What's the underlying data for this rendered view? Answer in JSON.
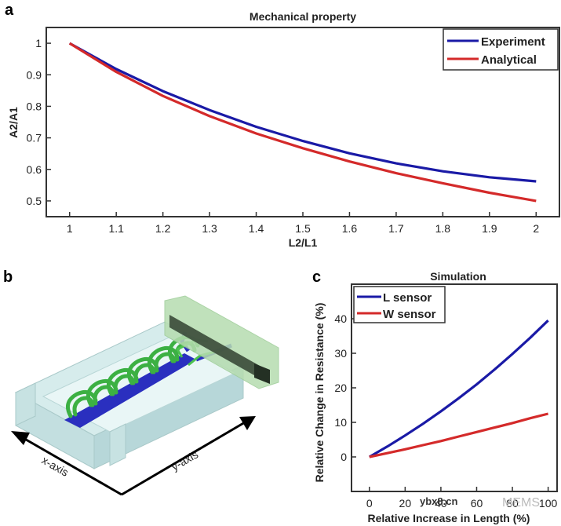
{
  "panels": {
    "a": "a",
    "b": "b",
    "c": "c"
  },
  "chart_data": [
    {
      "id": "a",
      "type": "line",
      "title": "Mechanical property",
      "xlabel": "L2/L1",
      "ylabel": "A2/A1",
      "xlim": [
        0.95,
        2.05
      ],
      "ylim": [
        0.45,
        1.05
      ],
      "xticks": [
        1,
        1.1,
        1.2,
        1.3,
        1.4,
        1.5,
        1.6,
        1.7,
        1.8,
        1.9,
        2
      ],
      "xtick_labels": [
        "1",
        "1.1",
        "1.2",
        "1.3",
        "1.4",
        "1.5",
        "1.6",
        "1.7",
        "1.8",
        "1.9",
        "2"
      ],
      "yticks": [
        0.5,
        0.6,
        0.7,
        0.8,
        0.9,
        1
      ],
      "ytick_labels": [
        "0.5",
        "0.6",
        "0.7",
        "0.8",
        "0.9",
        "1"
      ],
      "grid": false,
      "legend_position": "top-right",
      "x": [
        1,
        1.1,
        1.2,
        1.3,
        1.4,
        1.5,
        1.6,
        1.7,
        1.8,
        1.9,
        2
      ],
      "series": [
        {
          "name": "Experiment",
          "color": "#1a1aa6",
          "values": [
            1.0,
            0.918,
            0.848,
            0.788,
            0.735,
            0.69,
            0.651,
            0.619,
            0.594,
            0.575,
            0.562
          ]
        },
        {
          "name": "Analytical",
          "color": "#d42a2a",
          "values": [
            1.0,
            0.909,
            0.833,
            0.769,
            0.714,
            0.667,
            0.625,
            0.588,
            0.556,
            0.526,
            0.5
          ]
        }
      ]
    },
    {
      "id": "c",
      "type": "line",
      "title": "Simulation",
      "xlabel": "Relative Increase in Length (%)",
      "ylabel": "Relative Change in Resistance (%)",
      "xlim": [
        -10,
        105
      ],
      "ylim": [
        -10,
        50
      ],
      "xticks": [
        0,
        20,
        40,
        60,
        80,
        100
      ],
      "xtick_labels": [
        "0",
        "20",
        "40",
        "60",
        "80",
        "100"
      ],
      "yticks": [
        0,
        10,
        20,
        30,
        40
      ],
      "ytick_labels": [
        "0",
        "10",
        "20",
        "30",
        "40"
      ],
      "grid": false,
      "legend_position": "top-left",
      "x": [
        0,
        10,
        20,
        30,
        40,
        50,
        60,
        70,
        80,
        90,
        100
      ],
      "series": [
        {
          "name": "L sensor",
          "color": "#1a1aa6",
          "values": [
            0,
            3.0,
            6.2,
            9.6,
            13.2,
            17.0,
            21.0,
            25.3,
            29.8,
            34.5,
            39.5
          ]
        },
        {
          "name": "W sensor",
          "color": "#d42a2a",
          "values": [
            0,
            1.1,
            2.2,
            3.4,
            4.6,
            5.9,
            7.2,
            8.5,
            9.8,
            11.2,
            12.5
          ]
        }
      ]
    }
  ],
  "illustration_b": {
    "axis_labels": {
      "x": "x-axis",
      "y": "y-axis"
    },
    "colors": {
      "substrate": "#cfe9ea",
      "serpentine": "#3cb043",
      "electrode": "#2a2fbf",
      "clamp": "#b6dcb0",
      "clamp_dark": "#3a4a38"
    }
  },
  "watermark": {
    "text1": "ybx8.cn",
    "text2": "MEMS"
  }
}
